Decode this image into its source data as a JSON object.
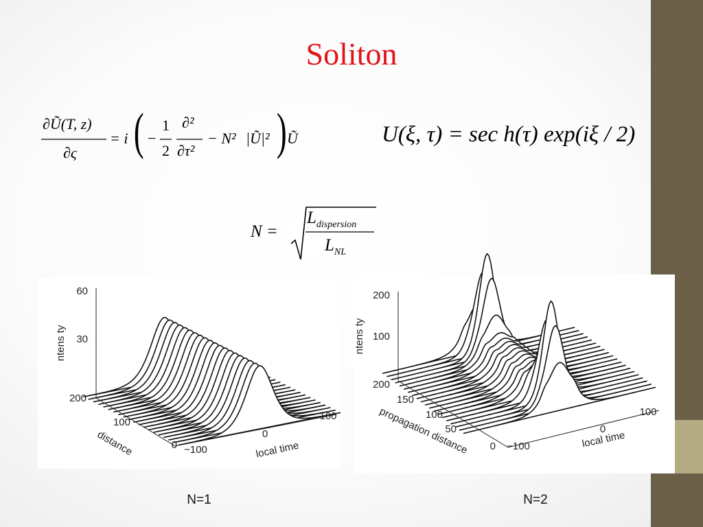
{
  "title": "Soliton",
  "equations": {
    "nls": {
      "lhs_num": "∂Ũ(T, z)",
      "lhs_den": "∂ς",
      "equals_i": "= i",
      "minus": "−",
      "half_num": "1",
      "half_den": "2",
      "d2_num": "∂²",
      "d2_den": "∂τ²",
      "nonlinear": "− N²",
      "modulus": "|Ũ|²",
      "tail": "Ũ"
    },
    "soliton": "U(ξ, τ) = sec h(τ) exp(iξ / 2)",
    "order": {
      "lhs": "N =",
      "num_base": "L",
      "num_sub": "dispersion",
      "den_base": "L",
      "den_sub": "NL"
    }
  },
  "plots": [
    {
      "intensity_label": "ntens ty",
      "intensity_ticks": [
        "60",
        "30"
      ],
      "distance_label": "distance",
      "distance_ticks": [
        "200",
        "100",
        "0"
      ],
      "time_label": "local time",
      "time_ticks": [
        "−100",
        "0",
        "100"
      ],
      "caption": "N=1"
    },
    {
      "intensity_label": "ntens ty",
      "intensity_ticks": [
        "200",
        "100"
      ],
      "distance_label": "propagation distance",
      "distance_ticks": [
        "200",
        "150",
        "100",
        "50",
        "0"
      ],
      "time_label": "local time",
      "time_ticks": [
        "−100",
        "0",
        "100"
      ],
      "caption": "N=2"
    }
  ]
}
